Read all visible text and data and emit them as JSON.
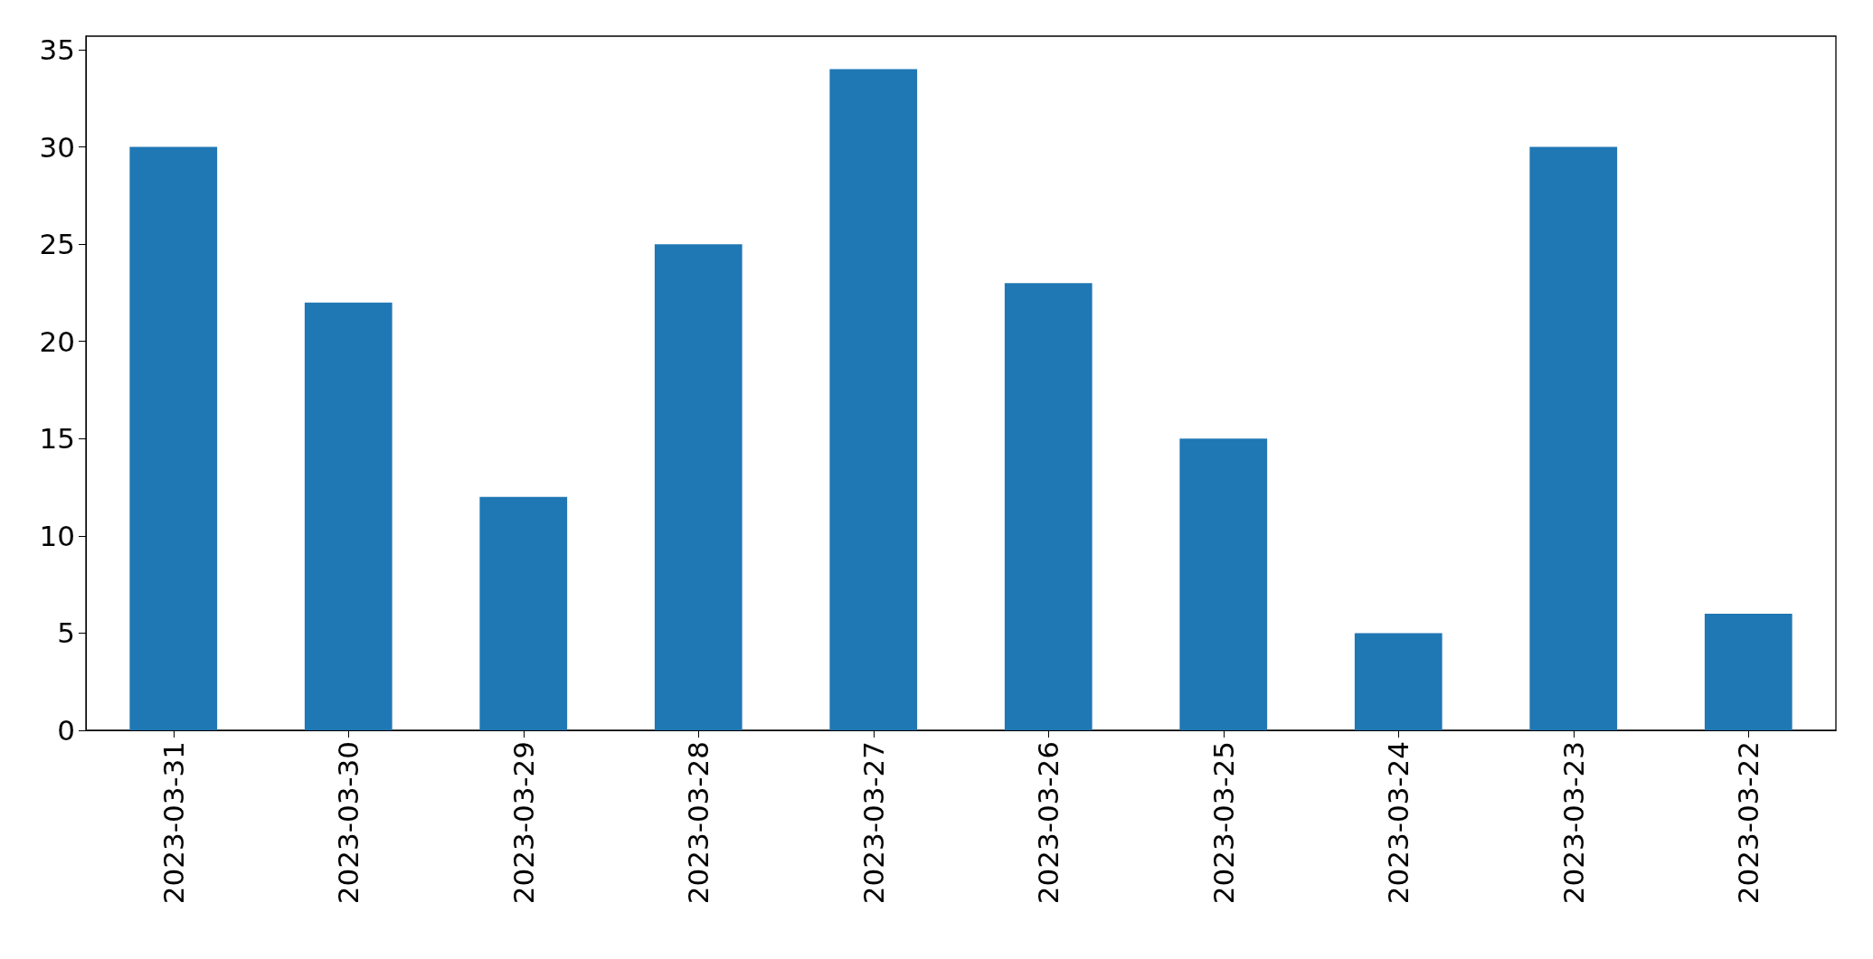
{
  "chart_data": {
    "type": "bar",
    "categories": [
      "2023-03-31",
      "2023-03-30",
      "2023-03-29",
      "2023-03-28",
      "2023-03-27",
      "2023-03-26",
      "2023-03-25",
      "2023-03-24",
      "2023-03-23",
      "2023-03-22"
    ],
    "values": [
      30,
      22,
      12,
      25,
      34,
      23,
      15,
      5,
      30,
      6
    ],
    "color": "#1f77b4",
    "ylim": [
      0,
      35.7
    ],
    "yticks": [
      0,
      5,
      10,
      15,
      20,
      25,
      30,
      35
    ],
    "grid": false
  }
}
